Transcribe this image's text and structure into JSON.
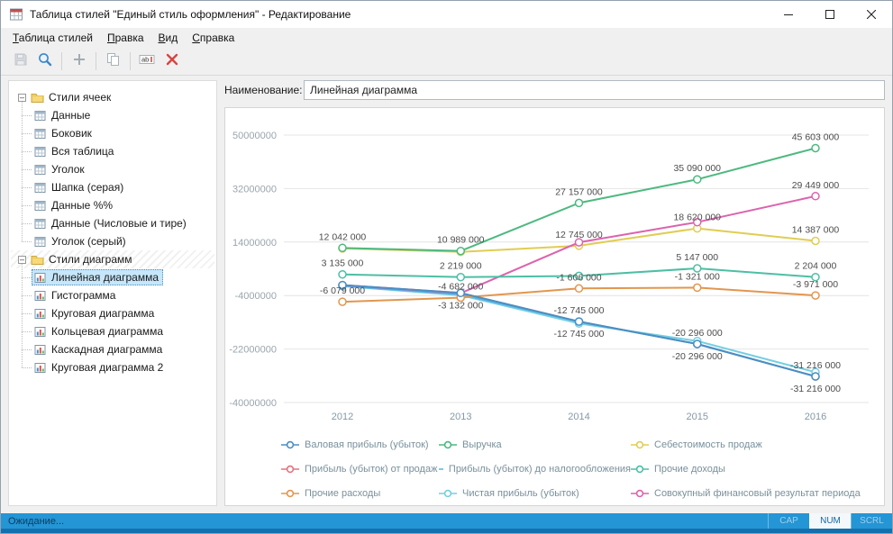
{
  "window": {
    "title": "Таблица стилей \"Единый стиль оформления\" - Редактирование"
  },
  "menu": {
    "items": [
      "Таблица стилей",
      "Правка",
      "Вид",
      "Справка"
    ]
  },
  "toolbar": {
    "buttons": [
      {
        "icon": "save-icon",
        "enabled": false
      },
      {
        "icon": "zoom-icon",
        "enabled": true
      },
      {
        "type": "separator"
      },
      {
        "icon": "add-icon",
        "enabled": true
      },
      {
        "type": "separator"
      },
      {
        "icon": "copy-icon",
        "enabled": true
      },
      {
        "type": "separator"
      },
      {
        "icon": "rename-icon",
        "enabled": true
      },
      {
        "icon": "delete-icon",
        "enabled": true
      }
    ]
  },
  "tree": {
    "groups": [
      {
        "label": "Стили ячеек",
        "expanded": true,
        "striped": false,
        "icon_type": "table",
        "items": [
          {
            "label": "Данные",
            "selected": false
          },
          {
            "label": "Боковик",
            "selected": false
          },
          {
            "label": "Вся таблица",
            "selected": false
          },
          {
            "label": "Уголок",
            "selected": false
          },
          {
            "label": "Шапка (серая)",
            "selected": false
          },
          {
            "label": "Данные %%",
            "selected": false
          },
          {
            "label": "Данные (Числовые и тире)",
            "selected": false
          },
          {
            "label": "Уголок (серый)",
            "selected": false
          }
        ]
      },
      {
        "label": "Стили диаграмм",
        "expanded": true,
        "striped": true,
        "icon_type": "chart",
        "items": [
          {
            "label": "Линейная диаграмма",
            "selected": true
          },
          {
            "label": "Гистограмма",
            "selected": false
          },
          {
            "label": "Круговая диаграмма",
            "selected": false
          },
          {
            "label": "Кольцевая диаграмма",
            "selected": false
          },
          {
            "label": "Каскадная диаграмма",
            "selected": false
          },
          {
            "label": "Круговая диаграмма 2",
            "selected": false
          }
        ]
      }
    ]
  },
  "editor": {
    "name_label": "Наименование:",
    "name_value": "Линейная диаграмма"
  },
  "chart_data": {
    "type": "line",
    "title": "",
    "xlabel": "",
    "ylabel": "",
    "grid": true,
    "legend_position": "bottom",
    "categories": [
      "2012",
      "2013",
      "2014",
      "2015",
      "2016"
    ],
    "ylim": [
      -40000000,
      50000000
    ],
    "yticks": [
      50000000,
      32000000,
      14000000,
      -4000000,
      -22000000,
      -40000000
    ],
    "series": [
      {
        "name": "Валовая прибыль (убыток)",
        "color": "#4a8fc4",
        "label_side": "below",
        "values": [
          -479000,
          -3132000,
          -12745000,
          -20296000,
          -31216000
        ],
        "labels": [
          null,
          "-3 132 000",
          "-12 745 000",
          "-20 296 000",
          "-31 216 000"
        ]
      },
      {
        "name": "Выручка",
        "color": "#4cb97f",
        "label_side": "above",
        "values": [
          12042000,
          10989000,
          27157000,
          35090000,
          45603000
        ],
        "labels": [
          "12 042 000",
          "10 989 000",
          "27 157 000",
          "35 090 000",
          "45 603 000"
        ]
      },
      {
        "name": "Себестоимость продаж",
        "color": "#e0cd52",
        "label_side": "above",
        "values": [
          11842000,
          10689000,
          12745000,
          18620000,
          14387000
        ],
        "labels": [
          null,
          null,
          "12 745 000",
          "18 620 000",
          "14 387 000"
        ]
      },
      {
        "name": "Прибыль (убыток) от продаж",
        "color": "#e4737f",
        "label_side": "above",
        "values": [
          -479000,
          -3132000,
          -12745000,
          -20296000,
          -31216000
        ],
        "labels": [
          null,
          null,
          null,
          null,
          null
        ]
      },
      {
        "name": "Прибыль (убыток) до налогообложения",
        "color": "#58b0e4",
        "label_side": "above",
        "values": [
          -700000,
          -3600000,
          -12745000,
          -20296000,
          -31216000
        ],
        "labels": [
          null,
          null,
          "-12 745 000",
          "-20 296 000",
          "-31 216 000"
        ]
      },
      {
        "name": "Прочие доходы",
        "color": "#4cbfa4",
        "label_side": "above",
        "values": [
          3135000,
          2219000,
          2600000,
          5147000,
          2204000
        ],
        "labels": [
          "3 135 000",
          "2 219 000",
          null,
          "5 147 000",
          "2 204 000"
        ]
      },
      {
        "name": "Прочие расходы",
        "color": "#e2964e",
        "label_side": "above",
        "values": [
          -6079000,
          -4682000,
          -1606000,
          -1321000,
          -3971000
        ],
        "labels": [
          "-6 079 000",
          "-4 682 000",
          "-1 606 000",
          "-1 321 000",
          "-3 971 000"
        ]
      },
      {
        "name": "Чистая прибыль (убыток)",
        "color": "#74cfe2",
        "label_side": "above",
        "values": [
          -850000,
          -3900000,
          -13400000,
          -19300000,
          -29800000
        ],
        "labels": [
          null,
          null,
          null,
          null,
          null
        ]
      },
      {
        "name": "Совокупный финансовый результат периода",
        "color": "#dc63ae",
        "label_side": "above",
        "values": [
          -500000,
          -3200000,
          13900000,
          20700000,
          29449000
        ],
        "labels": [
          null,
          null,
          null,
          null,
          "29 449 000"
        ]
      }
    ]
  },
  "status": {
    "text": "Ожидание...",
    "indicators": [
      {
        "label": "CAP",
        "active": false
      },
      {
        "label": "NUM",
        "active": true
      },
      {
        "label": "SCRL",
        "active": false
      }
    ]
  }
}
